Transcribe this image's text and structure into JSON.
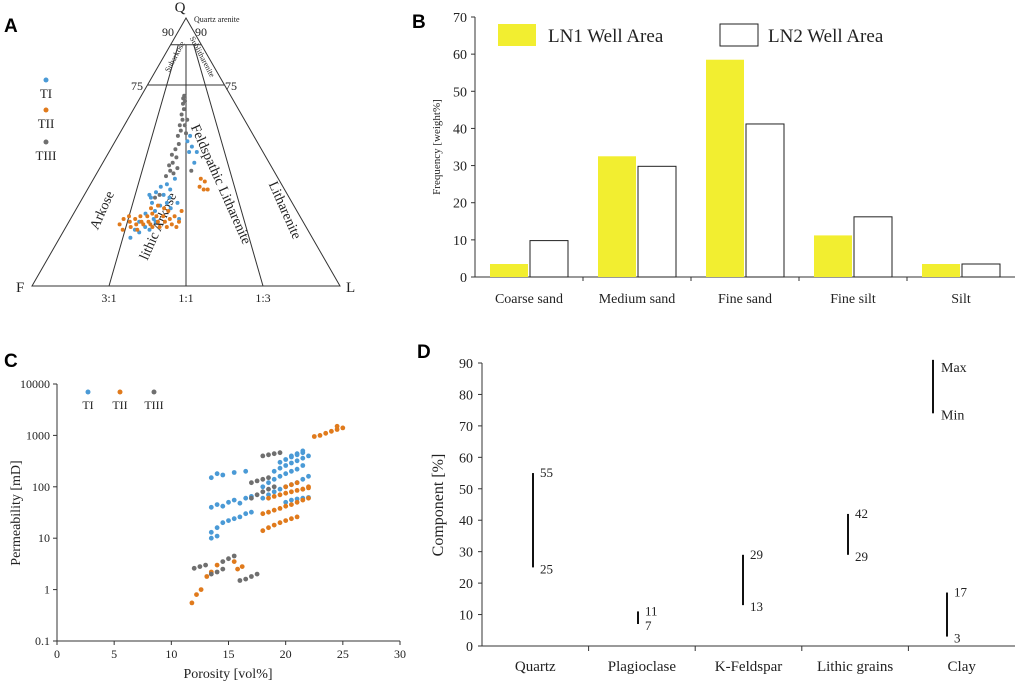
{
  "panels": {
    "a": "A",
    "b": "B",
    "c": "C",
    "d": "D"
  },
  "colors": {
    "ti": "#4a9ad6",
    "tii": "#e07a1c",
    "tiii": "#6f6f6f",
    "yellow": "#f2ee30",
    "yellow_dot": "#dfd400"
  },
  "chart_data": [
    {
      "id": "A",
      "type": "scatter",
      "subtype": "ternary",
      "apices": {
        "top": "Q",
        "left": "F",
        "right": "L"
      },
      "corner_label": "Quartz arenite",
      "tick_labels": {
        "q90_left": "90",
        "q90_right": "90",
        "q75_left": "75",
        "q75_right": "75",
        "r31": "3:1",
        "r11": "1:1",
        "r13": "1:3"
      },
      "field_labels": {
        "subarkose": "Subarkose",
        "sublitharenite": "Sublitharenite",
        "arkose": "Arkose",
        "lithic_arkose": "lithic Arkose",
        "feldspathic_litharenite": "Feldspathic Litharenite",
        "litharenite": "Litharenite"
      },
      "legend": [
        "TI",
        "TII",
        "TIII"
      ],
      "series": [
        {
          "name": "TI",
          "points": [
            [
              0.31,
              0.2
            ],
            [
              0.33,
              0.22
            ],
            [
              0.35,
              0.21
            ],
            [
              0.3,
              0.24
            ],
            [
              0.37,
              0.24
            ],
            [
              0.32,
              0.27
            ],
            [
              0.36,
              0.28
            ],
            [
              0.34,
              0.31
            ],
            [
              0.38,
              0.3
            ],
            [
              0.39,
              0.34
            ],
            [
              0.37,
              0.37
            ],
            [
              0.4,
              0.38
            ],
            [
              0.42,
              0.36
            ],
            [
              0.28,
              0.18
            ],
            [
              0.29,
              0.21
            ],
            [
              0.41,
              0.31
            ],
            [
              0.44,
              0.4
            ],
            [
              0.43,
              0.29
            ],
            [
              0.46,
              0.31
            ],
            [
              0.47,
              0.25
            ],
            [
              0.33,
              0.33
            ],
            [
              0.35,
              0.35
            ],
            [
              0.42,
              0.33
            ],
            [
              0.32,
              0.34
            ],
            [
              0.36,
              0.25
            ],
            [
              0.52,
              0.5
            ],
            [
              0.55,
              0.46
            ],
            [
              0.51,
              0.54
            ],
            [
              0.53,
              0.56
            ],
            [
              0.54,
              0.52
            ],
            [
              0.57,
              0.5
            ]
          ]
        },
        {
          "name": "TII",
          "points": [
            [
              0.22,
              0.23
            ],
            [
              0.23,
              0.25
            ],
            [
              0.24,
              0.21
            ],
            [
              0.25,
              0.26
            ],
            [
              0.26,
              0.24
            ],
            [
              0.27,
              0.22
            ],
            [
              0.28,
              0.25
            ],
            [
              0.29,
              0.23
            ],
            [
              0.3,
              0.26
            ],
            [
              0.3,
              0.21
            ],
            [
              0.31,
              0.24
            ],
            [
              0.32,
              0.23
            ],
            [
              0.33,
              0.26
            ],
            [
              0.34,
              0.24
            ],
            [
              0.35,
              0.23
            ],
            [
              0.35,
              0.27
            ],
            [
              0.36,
              0.22
            ],
            [
              0.37,
              0.26
            ],
            [
              0.38,
              0.24
            ],
            [
              0.39,
              0.22
            ],
            [
              0.4,
              0.26
            ],
            [
              0.41,
              0.24
            ],
            [
              0.42,
              0.22
            ],
            [
              0.43,
              0.25
            ],
            [
              0.44,
              0.23
            ],
            [
              0.45,
              0.26
            ],
            [
              0.46,
              0.22
            ],
            [
              0.47,
              0.24
            ],
            [
              0.48,
              0.28
            ],
            [
              0.37,
              0.3
            ],
            [
              0.34,
              0.29
            ],
            [
              0.4,
              0.29
            ],
            [
              0.42,
              0.28
            ],
            [
              0.57,
              0.37
            ],
            [
              0.59,
              0.36
            ],
            [
              0.61,
              0.36
            ],
            [
              0.6,
              0.39
            ],
            [
              0.58,
              0.4
            ]
          ]
        },
        {
          "name": "TIII",
          "points": [
            [
              0.39,
              0.41
            ],
            [
              0.41,
              0.43
            ],
            [
              0.43,
              0.42
            ],
            [
              0.4,
              0.45
            ],
            [
              0.42,
              0.46
            ],
            [
              0.44,
              0.48
            ],
            [
              0.41,
              0.49
            ],
            [
              0.43,
              0.51
            ],
            [
              0.45,
              0.53
            ],
            [
              0.44,
              0.56
            ],
            [
              0.46,
              0.58
            ],
            [
              0.45,
              0.6
            ],
            [
              0.47,
              0.62
            ],
            [
              0.46,
              0.64
            ],
            [
              0.48,
              0.66
            ],
            [
              0.47,
              0.68
            ],
            [
              0.49,
              0.6
            ],
            [
              0.5,
              0.57
            ],
            [
              0.51,
              0.62
            ],
            [
              0.48,
              0.71
            ],
            [
              0.47,
              0.7
            ],
            [
              0.49,
              0.69
            ],
            [
              0.35,
              0.33
            ],
            [
              0.37,
              0.34
            ],
            [
              0.45,
              0.44
            ],
            [
              0.53,
              0.43
            ]
          ]
        }
      ]
    },
    {
      "id": "B",
      "type": "bar",
      "categories": [
        "Coarse sand",
        "Medium sand",
        "Fine sand",
        "Fine silt",
        "Silt"
      ],
      "series": [
        {
          "name": "LN1 Well Area",
          "values": [
            3.5,
            32.5,
            58.5,
            11.2,
            3.5
          ]
        },
        {
          "name": "LN2 Well Area",
          "values": [
            9.8,
            29.8,
            41.2,
            16.2,
            3.5
          ]
        }
      ],
      "legend": [
        "LN1 Well Area",
        "LN2 Well Area"
      ],
      "ylabel": "Frequency [weight%]",
      "xlabel": "",
      "ylim": [
        0,
        70
      ],
      "yticks": [
        "0",
        "10",
        "20",
        "30",
        "40",
        "50",
        "60",
        "70"
      ]
    },
    {
      "id": "C",
      "type": "scatter",
      "xlabel": "Porosity [vol%]",
      "ylabel": "Permeability [mD]",
      "xlim": [
        0,
        30
      ],
      "ylim": [
        0.1,
        10000
      ],
      "yscale": "log",
      "xticks": [
        "0",
        "5",
        "10",
        "15",
        "20",
        "25",
        "30"
      ],
      "yticks": [
        "0.1",
        "1",
        "10",
        "100",
        "1000",
        "10000"
      ],
      "legend": [
        "TI",
        "TII",
        "TIII"
      ],
      "series": [
        {
          "name": "TI",
          "points": [
            [
              13.5,
              150
            ],
            [
              14,
              180
            ],
            [
              14.5,
              170
            ],
            [
              15.5,
              190
            ],
            [
              16.5,
              200
            ],
            [
              13.5,
              40
            ],
            [
              14,
              45
            ],
            [
              14.5,
              42
            ],
            [
              15,
              50
            ],
            [
              15.5,
              55
            ],
            [
              16,
              48
            ],
            [
              16.5,
              60
            ],
            [
              17,
              65
            ],
            [
              13.5,
              13
            ],
            [
              14,
              16
            ],
            [
              14.5,
              20
            ],
            [
              15,
              22
            ],
            [
              15.5,
              24
            ],
            [
              16,
              26
            ],
            [
              16.5,
              30
            ],
            [
              17,
              32
            ],
            [
              13.5,
              10
            ],
            [
              14,
              11
            ],
            [
              18,
              100
            ],
            [
              18.5,
              120
            ],
            [
              19,
              140
            ],
            [
              19.5,
              160
            ],
            [
              20,
              180
            ],
            [
              20.5,
              200
            ],
            [
              21,
              220
            ],
            [
              21.5,
              260
            ],
            [
              19,
              200
            ],
            [
              19.5,
              230
            ],
            [
              20,
              260
            ],
            [
              20.5,
              290
            ],
            [
              21,
              320
            ],
            [
              21.5,
              360
            ],
            [
              22,
              400
            ],
            [
              19.5,
              300
            ],
            [
              20,
              340
            ],
            [
              20.5,
              380
            ],
            [
              21,
              420
            ],
            [
              21.5,
              460
            ],
            [
              18,
              60
            ],
            [
              18.5,
              70
            ],
            [
              19,
              80
            ],
            [
              19.5,
              90
            ],
            [
              20,
              100
            ],
            [
              20.5,
              110
            ],
            [
              21,
              120
            ],
            [
              21.5,
              140
            ],
            [
              22,
              160
            ],
            [
              20,
              50
            ],
            [
              20.5,
              55
            ],
            [
              21,
              58
            ],
            [
              21.5,
              60
            ],
            [
              22,
              62
            ],
            [
              20.5,
              400
            ],
            [
              21,
              440
            ],
            [
              21.5,
              500
            ]
          ]
        },
        {
          "name": "TII",
          "points": [
            [
              11.8,
              0.55
            ],
            [
              12.2,
              0.8
            ],
            [
              12.6,
              1.0
            ],
            [
              13.1,
              1.8
            ],
            [
              13.5,
              2.2
            ],
            [
              14.0,
              3.0
            ],
            [
              15.5,
              3.5
            ],
            [
              15.8,
              2.5
            ],
            [
              16.2,
              2.8
            ],
            [
              18,
              30
            ],
            [
              18.5,
              32
            ],
            [
              19,
              35
            ],
            [
              19.5,
              38
            ],
            [
              20,
              42
            ],
            [
              20.5,
              45
            ],
            [
              21,
              50
            ],
            [
              21.5,
              55
            ],
            [
              22,
              60
            ],
            [
              18,
              14
            ],
            [
              18.5,
              16
            ],
            [
              19,
              18
            ],
            [
              19.5,
              20
            ],
            [
              20,
              22
            ],
            [
              20.5,
              24
            ],
            [
              21,
              26
            ],
            [
              18.5,
              60
            ],
            [
              19,
              65
            ],
            [
              19.5,
              70
            ],
            [
              20,
              75
            ],
            [
              20.5,
              80
            ],
            [
              21,
              85
            ],
            [
              21.5,
              90
            ],
            [
              22,
              95
            ],
            [
              20,
              100
            ],
            [
              20.5,
              110
            ],
            [
              21,
              120
            ],
            [
              21.5,
              90
            ],
            [
              22,
              100
            ],
            [
              22.5,
              950
            ],
            [
              23,
              1000
            ],
            [
              23.5,
              1100
            ],
            [
              24,
              1200
            ],
            [
              24.5,
              1300
            ],
            [
              25,
              1400
            ],
            [
              24.5,
              1500
            ]
          ]
        },
        {
          "name": "TIII",
          "points": [
            [
              12,
              2.6
            ],
            [
              12.5,
              2.8
            ],
            [
              13,
              3.0
            ],
            [
              13.5,
              2.0
            ],
            [
              14,
              2.2
            ],
            [
              14.5,
              2.5
            ],
            [
              15,
              4.0
            ],
            [
              15.5,
              4.5
            ],
            [
              14.5,
              3.5
            ],
            [
              16,
              1.5
            ],
            [
              16.5,
              1.6
            ],
            [
              17,
              1.8
            ],
            [
              17.5,
              2.0
            ],
            [
              17,
              120
            ],
            [
              17.5,
              130
            ],
            [
              18,
              140
            ],
            [
              18.5,
              150
            ],
            [
              17,
              60
            ],
            [
              17.5,
              70
            ],
            [
              18,
              80
            ],
            [
              18.5,
              90
            ],
            [
              19,
              100
            ],
            [
              18,
              400
            ],
            [
              18.5,
              420
            ],
            [
              19,
              440
            ],
            [
              19.5,
              460
            ]
          ]
        }
      ]
    },
    {
      "id": "D",
      "type": "range",
      "categories": [
        "Quartz",
        "Plagioclase",
        "K-Feldspar",
        "Lithic grains",
        "Clay"
      ],
      "ranges": [
        {
          "min": 25,
          "max": 55,
          "min_label": "25",
          "max_label": "55"
        },
        {
          "min": 7,
          "max": 11,
          "min_label": "7",
          "max_label": "11"
        },
        {
          "min": 13,
          "max": 29,
          "min_label": "13",
          "max_label": "29"
        },
        {
          "min": 29,
          "max": 42,
          "min_label": "29",
          "max_label": "42"
        },
        {
          "min": 3,
          "max": 17,
          "min_label": "3",
          "max_label": "17"
        }
      ],
      "legend_bar": {
        "min": 74,
        "max": 91,
        "max_label": "Max",
        "min_label": "Min"
      },
      "ylabel": "Component [%]",
      "ylim": [
        0,
        90
      ],
      "yticks": [
        "0",
        "10",
        "20",
        "30",
        "40",
        "50",
        "60",
        "70",
        "80",
        "90"
      ]
    }
  ]
}
